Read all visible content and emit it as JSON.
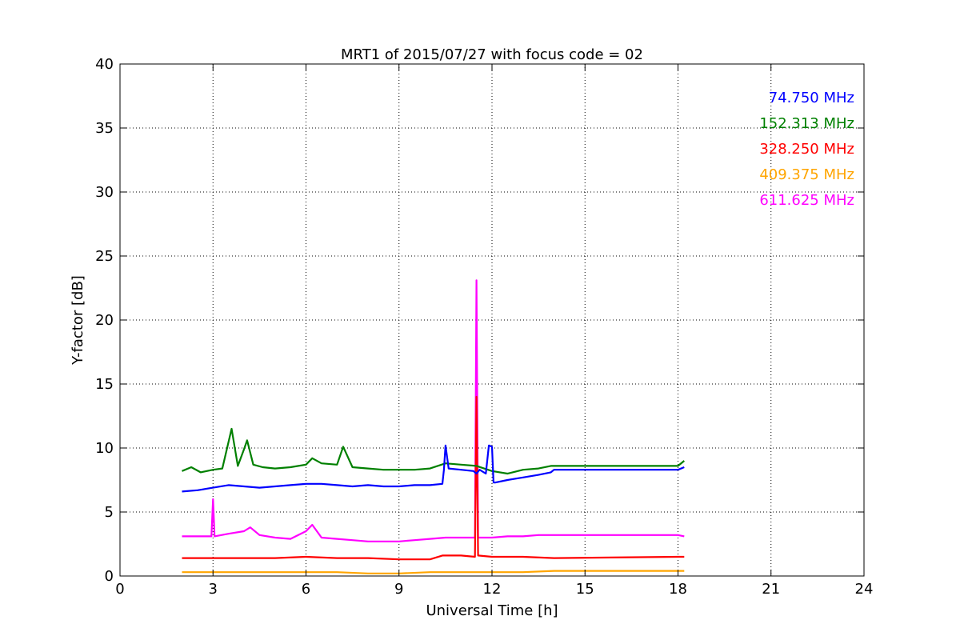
{
  "chart_data": {
    "type": "line",
    "title": "MRT1 of 2015/07/27 with focus code = 02",
    "xlabel": "Universal Time [h]",
    "ylabel": "Y-factor [dB]",
    "xlim": [
      0,
      24
    ],
    "ylim": [
      0,
      40
    ],
    "xticks": [
      0,
      3,
      6,
      9,
      12,
      15,
      18,
      21,
      24
    ],
    "yticks": [
      0,
      5,
      10,
      15,
      20,
      25,
      30,
      35,
      40
    ],
    "grid": true,
    "legend_position": "top-right",
    "series": [
      {
        "name": "74.750 MHz",
        "color": "#0000ff",
        "x": [
          2.0,
          2.5,
          3.0,
          3.5,
          4.0,
          4.5,
          5.0,
          5.5,
          6.0,
          6.5,
          7.0,
          7.5,
          8.0,
          8.5,
          9.0,
          9.5,
          10.0,
          10.4,
          10.45,
          10.5,
          10.6,
          11.0,
          11.4,
          11.5,
          11.6,
          11.8,
          11.9,
          12.0,
          12.05,
          12.1,
          12.5,
          13.0,
          13.5,
          13.9,
          14.0,
          18.0,
          18.2
        ],
        "y": [
          6.6,
          6.7,
          6.9,
          7.1,
          7.0,
          6.9,
          7.0,
          7.1,
          7.2,
          7.2,
          7.1,
          7.0,
          7.1,
          7.0,
          7.0,
          7.1,
          7.1,
          7.2,
          8.3,
          10.2,
          8.4,
          8.3,
          8.2,
          8.0,
          8.3,
          8.0,
          10.2,
          10.1,
          7.3,
          7.3,
          7.5,
          7.7,
          7.9,
          8.1,
          8.3,
          8.3,
          8.5
        ]
      },
      {
        "name": "152.313 MHz",
        "color": "#008000",
        "x": [
          2.0,
          2.3,
          2.6,
          3.0,
          3.3,
          3.6,
          3.8,
          4.0,
          4.1,
          4.3,
          4.6,
          5.0,
          5.5,
          6.0,
          6.2,
          6.5,
          7.0,
          7.2,
          7.5,
          8.0,
          8.5,
          9.0,
          9.5,
          10.0,
          10.5,
          11.0,
          11.5,
          12.0,
          12.5,
          13.0,
          13.5,
          13.9,
          14.0,
          18.0,
          18.2
        ],
        "y": [
          8.2,
          8.5,
          8.1,
          8.3,
          8.4,
          11.5,
          8.6,
          9.9,
          10.6,
          8.7,
          8.5,
          8.4,
          8.5,
          8.7,
          9.2,
          8.8,
          8.7,
          10.1,
          8.5,
          8.4,
          8.3,
          8.3,
          8.3,
          8.4,
          8.8,
          8.7,
          8.6,
          8.2,
          8.0,
          8.3,
          8.4,
          8.6,
          8.6,
          8.6,
          9.0
        ]
      },
      {
        "name": "328.250 MHz",
        "color": "#ff0000",
        "x": [
          2.0,
          3.0,
          4.0,
          5.0,
          6.0,
          7.0,
          8.0,
          9.0,
          10.0,
          10.4,
          11.0,
          11.45,
          11.5,
          11.55,
          12.0,
          13.0,
          14.0,
          18.0,
          18.2
        ],
        "y": [
          1.4,
          1.4,
          1.4,
          1.4,
          1.5,
          1.4,
          1.4,
          1.3,
          1.3,
          1.6,
          1.6,
          1.5,
          14.0,
          1.6,
          1.5,
          1.5,
          1.4,
          1.5,
          1.5
        ]
      },
      {
        "name": "409.375 MHz",
        "color": "#ffa500",
        "x": [
          2.0,
          3.0,
          4.0,
          5.0,
          6.0,
          7.0,
          8.0,
          9.0,
          10.0,
          11.0,
          11.5,
          12.0,
          13.0,
          14.0,
          18.0,
          18.2
        ],
        "y": [
          0.3,
          0.3,
          0.3,
          0.3,
          0.3,
          0.3,
          0.2,
          0.2,
          0.3,
          0.3,
          0.3,
          0.3,
          0.3,
          0.4,
          0.4,
          0.4
        ]
      },
      {
        "name": "611.625 MHz",
        "color": "#ff00ff",
        "x": [
          2.0,
          2.5,
          2.95,
          3.0,
          3.05,
          3.5,
          4.0,
          4.2,
          4.5,
          5.0,
          5.5,
          6.0,
          6.2,
          6.5,
          7.0,
          7.5,
          8.0,
          8.5,
          9.0,
          9.5,
          10.0,
          10.5,
          11.0,
          11.45,
          11.5,
          11.55,
          12.0,
          12.5,
          13.0,
          13.5,
          14.0,
          18.0,
          18.2
        ],
        "y": [
          3.1,
          3.1,
          3.1,
          6.0,
          3.1,
          3.3,
          3.5,
          3.8,
          3.2,
          3.0,
          2.9,
          3.5,
          4.0,
          3.0,
          2.9,
          2.8,
          2.7,
          2.7,
          2.7,
          2.8,
          2.9,
          3.0,
          3.0,
          3.0,
          23.1,
          3.0,
          3.0,
          3.1,
          3.1,
          3.2,
          3.2,
          3.2,
          3.1
        ]
      }
    ]
  }
}
